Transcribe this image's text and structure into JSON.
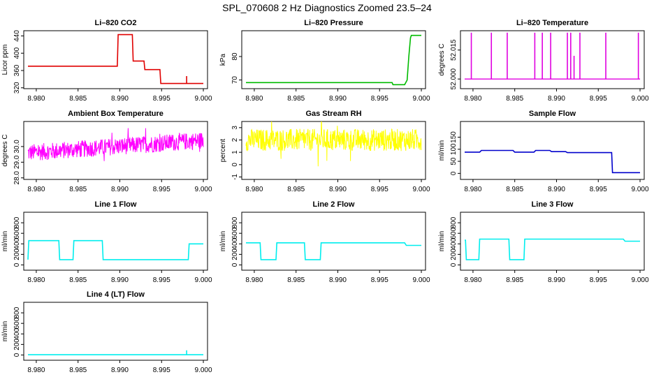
{
  "figure": {
    "title": "SPL_070608  2 Hz Diagnostics Zoomed 23.5–24"
  },
  "chart_data": [
    {
      "type": "line",
      "title": "Li–820 CO2",
      "ylabel": "Licor ppm",
      "color": "#e00000",
      "xlim": [
        8.9785,
        9.0005
      ],
      "ylim": [
        318,
        452
      ],
      "xticks": [
        "8.980",
        "8.985",
        "8.990",
        "8.995",
        "9.000"
      ],
      "yticks": [
        320,
        360,
        400,
        440
      ],
      "x": [
        8.979,
        8.9897,
        8.9898,
        8.9915,
        8.9916,
        8.9929,
        8.993,
        8.9948,
        8.9949,
        8.998,
        8.998,
        8.998,
        9.0
      ],
      "y": [
        370,
        370,
        443,
        443,
        382,
        382,
        362,
        362,
        330,
        330,
        347,
        330,
        330
      ]
    },
    {
      "type": "line",
      "title": "Li–820 Pressure",
      "ylabel": "kPa",
      "color": "#00bb00",
      "xlim": [
        8.9785,
        9.0005
      ],
      "ylim": [
        66.3,
        91
      ],
      "xticks": [
        "8.980",
        "8.985",
        "8.990",
        "8.995",
        "9.000"
      ],
      "yticks": [
        70,
        80
      ],
      "x": [
        8.979,
        8.9965,
        8.9966,
        8.998,
        8.9983,
        8.9985,
        8.9987,
        8.9988,
        9.0
      ],
      "y": [
        68.9,
        68.9,
        68,
        68,
        70,
        80,
        88,
        89,
        89
      ]
    },
    {
      "type": "line",
      "title": "Li–820 Temperature",
      "ylabel": "degrees C",
      "color": "#e000e0",
      "xlim": [
        8.9785,
        9.0005
      ],
      "ylim": [
        51.995,
        52.025
      ],
      "xticks": [
        "8.980",
        "8.985",
        "8.990",
        "8.995",
        "9.000"
      ],
      "yticks": [
        "52.000",
        "52.015"
      ],
      "yticks_values": [
        52.0,
        52.015
      ],
      "baseline": 52.0,
      "spikes_x": [
        8.9798,
        8.9822,
        8.9841,
        8.9874,
        8.9883,
        8.9893,
        8.9913,
        8.9917,
        8.9921,
        8.9928,
        8.9959,
        8.9998
      ],
      "spikes_y": [
        52.024,
        52.024,
        52.024,
        52.024,
        52.024,
        52.024,
        52.024,
        52.024,
        52.012,
        52.024,
        52.024,
        52.024
      ]
    },
    {
      "type": "line",
      "title": "Ambient Box Temperature",
      "ylabel": "degrees C",
      "color": "#ff00ff",
      "xlim": [
        8.9785,
        9.0005
      ],
      "ylim": [
        27.9,
        31.6
      ],
      "xticks": [
        "8.980",
        "8.985",
        "8.990",
        "8.995",
        "9.000"
      ],
      "yticks": [
        "28.0",
        "29.0",
        "30.0"
      ],
      "yticks_values": [
        28.0,
        29.0,
        30.0
      ],
      "trend_x": [
        8.979,
        9.0
      ],
      "trend_y": [
        29.6,
        30.4
      ],
      "noise_amplitude": 0.55
    },
    {
      "type": "line",
      "title": "Gas Stream RH",
      "ylabel": "percent",
      "color": "#ffff00",
      "xlim": [
        8.9785,
        9.0005
      ],
      "ylim": [
        -1.2,
        3.5
      ],
      "xticks": [
        "8.980",
        "8.985",
        "8.990",
        "8.995",
        "9.000"
      ],
      "yticks": [
        -1,
        0,
        1,
        2,
        3
      ],
      "trend_x": [
        8.979,
        9.0
      ],
      "trend_y": [
        2.0,
        2.0
      ],
      "noise_amplitude": 0.9
    },
    {
      "type": "line",
      "title": "Sample Flow",
      "ylabel": "ml/min",
      "color": "#0000cc",
      "xlim": [
        8.9785,
        9.0005
      ],
      "ylim": [
        -25,
        215
      ],
      "xticks": [
        "8.980",
        "8.985",
        "8.990",
        "8.995",
        "9.000"
      ],
      "yticks": [
        0,
        50,
        100,
        150
      ],
      "x": [
        8.979,
        8.9808,
        8.981,
        8.9848,
        8.985,
        8.9873,
        8.9875,
        8.9892,
        8.9894,
        8.9911,
        8.9913,
        8.9966,
        8.9967,
        9.0
      ],
      "y": [
        88,
        88,
        95,
        95,
        88,
        88,
        95,
        95,
        90,
        90,
        86,
        86,
        3,
        3
      ]
    },
    {
      "type": "line",
      "title": "Line 1 Flow",
      "ylabel": "ml/min",
      "color": "#00eeee",
      "xlim": [
        8.9785,
        9.0005
      ],
      "ylim": [
        -100,
        1000
      ],
      "xticks": [
        "8.980",
        "8.985",
        "8.990",
        "8.995",
        "9.000"
      ],
      "yticks": [
        0,
        200,
        400,
        600,
        800
      ],
      "x": [
        8.979,
        8.9791,
        8.9827,
        8.9828,
        8.9844,
        8.9845,
        8.9879,
        8.988,
        8.9982,
        8.9983,
        9.0
      ],
      "y": [
        100,
        460,
        460,
        100,
        100,
        460,
        460,
        100,
        100,
        400,
        400
      ]
    },
    {
      "type": "line",
      "title": "Line 2 Flow",
      "ylabel": "ml/min",
      "color": "#00eeee",
      "xlim": [
        8.9785,
        9.0005
      ],
      "ylim": [
        -100,
        1000
      ],
      "xticks": [
        "8.980",
        "8.985",
        "8.990",
        "8.995",
        "9.000"
      ],
      "yticks": [
        0,
        200,
        400,
        600,
        800
      ],
      "x": [
        8.979,
        8.9807,
        8.9808,
        8.9826,
        8.9827,
        8.986,
        8.9861,
        8.9879,
        8.988,
        8.998,
        8.9982,
        9.0
      ],
      "y": [
        420,
        420,
        100,
        100,
        420,
        420,
        100,
        100,
        420,
        420,
        370,
        370
      ]
    },
    {
      "type": "line",
      "title": "Line 3 Flow",
      "ylabel": "ml/min",
      "color": "#00eeee",
      "xlim": [
        8.9785,
        9.0005
      ],
      "ylim": [
        -100,
        1000
      ],
      "xticks": [
        "8.980",
        "8.985",
        "8.990",
        "8.995",
        "9.000"
      ],
      "yticks": [
        0,
        200,
        400,
        600,
        800
      ],
      "x": [
        8.979,
        8.9791,
        8.9792,
        8.9807,
        8.9808,
        8.9843,
        8.9844,
        8.9861,
        8.9862,
        8.998,
        8.9982,
        9.0
      ],
      "y": [
        470,
        470,
        100,
        100,
        490,
        490,
        100,
        100,
        490,
        490,
        450,
        450
      ]
    },
    {
      "type": "line",
      "title": "Line 4 (LT) Flow",
      "ylabel": "ml/min",
      "color": "#00eeee",
      "xlim": [
        8.9785,
        9.0005
      ],
      "ylim": [
        -100,
        1000
      ],
      "xticks": [
        "8.980",
        "8.985",
        "8.990",
        "8.995",
        "9.000"
      ],
      "yticks": [
        0,
        200,
        400,
        600,
        800
      ],
      "x": [
        8.979,
        8.998,
        8.998,
        8.998,
        9.0
      ],
      "y": [
        5,
        5,
        90,
        5,
        5
      ]
    }
  ]
}
